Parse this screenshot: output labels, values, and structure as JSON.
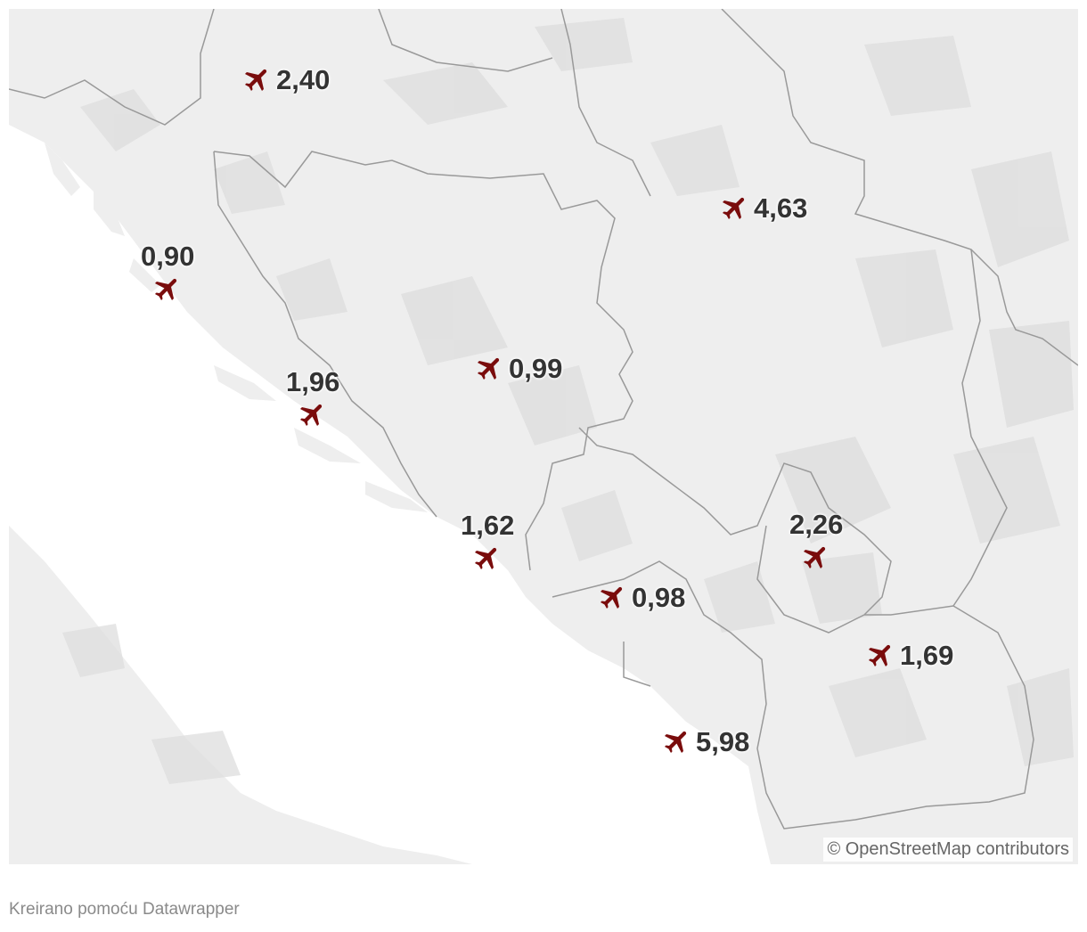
{
  "map": {
    "land_color": "#eeeeee",
    "terrain_color": "#dddddd",
    "sea_color": "#ffffff",
    "border_color": "#999999",
    "marker_color": "#7a0c0c",
    "attribution": "© OpenStreetMap contributors"
  },
  "markers": [
    {
      "id": "2-40",
      "icon": "airplane-icon",
      "value": "2,40"
    },
    {
      "id": "4-63",
      "icon": "airplane-icon",
      "value": "4,63"
    },
    {
      "id": "0-90",
      "icon": "airplane-icon",
      "value": "0,90"
    },
    {
      "id": "0-99",
      "icon": "airplane-icon",
      "value": "0,99"
    },
    {
      "id": "1-96",
      "icon": "airplane-icon",
      "value": "1,96"
    },
    {
      "id": "1-62",
      "icon": "airplane-icon",
      "value": "1,62"
    },
    {
      "id": "0-98",
      "icon": "airplane-icon",
      "value": "0,98"
    },
    {
      "id": "2-26",
      "icon": "airplane-icon",
      "value": "2,26"
    },
    {
      "id": "1-69",
      "icon": "airplane-icon",
      "value": "1,69"
    },
    {
      "id": "5-98",
      "icon": "airplane-icon",
      "value": "5,98"
    }
  ],
  "footer": {
    "credit": "Kreirano pomoću Datawrapper"
  }
}
